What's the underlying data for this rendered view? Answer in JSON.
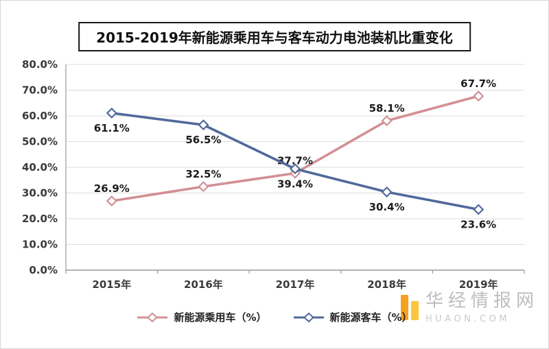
{
  "chart_data": {
    "type": "line",
    "title": "2015-2019年新能源乘用车与客车动力电池装机比重变化",
    "categories": [
      "2015年",
      "2016年",
      "2017年",
      "2018年",
      "2019年"
    ],
    "series": [
      {
        "name": "新能源乘用车（%）",
        "values": [
          26.9,
          32.5,
          37.7,
          58.1,
          67.7
        ],
        "color": "#d28f94",
        "marker": "diamond",
        "label_position": "above"
      },
      {
        "name": "新能源客车（%）",
        "values": [
          61.1,
          56.5,
          39.4,
          30.4,
          23.6
        ],
        "color": "#50699b",
        "marker": "diamond",
        "label_position": "below"
      }
    ],
    "ylim": [
      0,
      80
    ],
    "ytick_step": 10,
    "ytick_labels": [
      "0.0%",
      "10.0%",
      "20.0%",
      "30.0%",
      "40.0%",
      "50.0%",
      "60.0%",
      "70.0%",
      "80.0%"
    ],
    "grid": "horizontal",
    "legend_position": "bottom",
    "data_label_format": "{value}%"
  },
  "watermark": {
    "name": "华经情报网",
    "domain": "HUAON.COM",
    "logo_color_tall": "#f6a21d",
    "logo_color_short": "#fbc63e"
  }
}
